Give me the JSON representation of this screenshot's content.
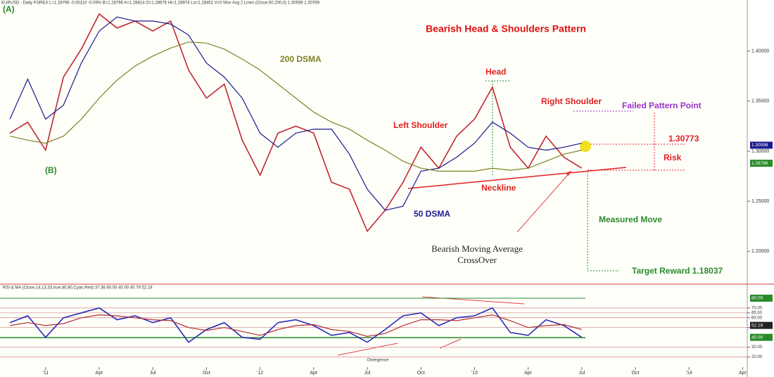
{
  "header": "EURUSD - Daily  FOREX  L=1.28796  -0.00110  -0.09%  B=1.28796  A=1.28814  O=1.28676  Hi=1.28974  Lo=1.28451  V=0  Mov Avg 2 Lines (Close,50,200,0)  1.30598  1.30769",
  "chart_data": [
    {
      "type": "line",
      "title": "Bearish Head & Shoulders Pattern",
      "categories": [
        null,
        null,
        "'11",
        null,
        null,
        "Apr",
        null,
        null,
        "Jul",
        null,
        null,
        "Oct",
        null,
        null,
        "'12",
        null,
        null,
        "Apr",
        null,
        null,
        "Jul",
        null,
        null,
        "Oct",
        null,
        null,
        "'13",
        null,
        null,
        "Apr",
        null,
        null,
        "Jul",
        null,
        null,
        "Oct",
        null,
        null,
        "'14",
        null,
        null,
        "Apr"
      ],
      "series": [
        {
          "color": "#c0282d",
          "values": [
            1.318,
            1.329,
            1.301,
            1.374,
            1.402,
            1.437,
            1.423,
            1.43,
            1.42,
            1.43,
            1.381,
            1.353,
            1.367,
            1.311,
            1.276,
            1.318,
            1.325,
            1.318,
            1.269,
            1.262,
            1.22,
            1.241,
            1.269,
            1.304,
            1.283,
            1.315,
            1.332,
            1.364,
            1.304,
            1.283,
            1.315,
            1.294,
            1.283,
            null,
            null,
            null,
            null,
            null,
            null,
            null,
            null,
            null
          ]
        },
        {
          "name": "50 DSMA",
          "color": "#1a1a8c",
          "values": [
            1.332,
            1.372,
            1.332,
            1.346,
            1.388,
            1.42,
            1.434,
            1.43,
            1.43,
            1.427,
            1.416,
            1.388,
            1.374,
            1.353,
            1.318,
            1.304,
            1.318,
            1.322,
            1.322,
            1.297,
            1.262,
            1.241,
            1.245,
            1.28,
            1.283,
            1.294,
            1.308,
            1.329,
            1.318,
            1.304,
            1.301,
            1.304,
            1.308,
            null,
            null,
            null,
            null,
            null,
            null,
            null,
            null,
            null
          ]
        },
        {
          "name": "200 DSMA",
          "color": "#808020",
          "values": [
            1.315,
            1.311,
            1.308,
            1.315,
            1.332,
            1.353,
            1.371,
            1.385,
            1.395,
            1.403,
            1.409,
            1.408,
            1.402,
            1.392,
            1.381,
            1.367,
            1.353,
            1.339,
            1.329,
            1.322,
            1.311,
            1.301,
            1.29,
            1.283,
            1.28,
            1.28,
            1.28,
            1.283,
            1.281,
            1.283,
            1.29,
            1.297,
            1.301,
            null,
            null,
            null,
            null,
            null,
            null,
            null,
            null,
            null
          ]
        }
      ],
      "ylim": [
        1.17,
        1.451
      ],
      "yticks": [
        {
          "value": 1.4,
          "label": "1.40000"
        },
        {
          "value": 1.35,
          "label": "1.35000"
        },
        {
          "value": 1.3,
          "label": "1.30000"
        },
        {
          "value": 1.25,
          "label": "1.25000"
        },
        {
          "value": 1.2,
          "label": "1.20000"
        }
      ],
      "grid": false,
      "last_values": [
        {
          "value": 1.30598,
          "label": "1.30598"
        },
        {
          "value": 1.28796,
          "label": "1.28796"
        }
      ],
      "annotations": [
        "(A)",
        "(B)",
        "Head",
        "Right Shoulder",
        "Failed Pattern Point",
        "Left Shoulder",
        "1.30773",
        "Risk",
        "Neckline",
        "Measured Move",
        "Bearish Moving Average",
        "CrossOver",
        "Target Reward 1.18037"
      ]
    },
    {
      "type": "line",
      "title": "RSI & MA (Close,14,13,33,true,40,80,Cyan,Red)  37.36  80.00  40.00  40.79  52.19",
      "series": [
        {
          "color": "#2a2ab8",
          "values": [
            55,
            62,
            40,
            60,
            65,
            70,
            58,
            62,
            55,
            60,
            35,
            48,
            55,
            40,
            38,
            55,
            58,
            52,
            42,
            45,
            35,
            48,
            62,
            65,
            52,
            60,
            62,
            70,
            45,
            42,
            58,
            52,
            40,
            null,
            null,
            null,
            null,
            null,
            null,
            null,
            null,
            null
          ]
        },
        {
          "color": "#b03030",
          "values": [
            52,
            55,
            52,
            54,
            60,
            63,
            62,
            60,
            58,
            57,
            50,
            47,
            50,
            46,
            42,
            48,
            52,
            53,
            48,
            46,
            41,
            44,
            52,
            58,
            58,
            57,
            60,
            63,
            57,
            50,
            52,
            53,
            48,
            null,
            null,
            null,
            null,
            null,
            null,
            null,
            null,
            null
          ]
        }
      ],
      "ylim": [
        11,
        90
      ],
      "yticks": [
        {
          "value": 70,
          "label": "70.00"
        },
        {
          "value": 65,
          "label": "65.00"
        },
        {
          "value": 60,
          "label": "60.00"
        },
        {
          "value": 50,
          "label": "50.00"
        },
        {
          "value": 30,
          "label": "30.00"
        },
        {
          "value": 20,
          "label": "20.00"
        }
      ],
      "last_values": [
        {
          "value": 80,
          "label": "80.00"
        },
        {
          "value": 52.19,
          "label": "52.19"
        },
        {
          "value": 40,
          "label": "40.00"
        }
      ],
      "annotations": [
        "Divergence"
      ]
    }
  ]
}
